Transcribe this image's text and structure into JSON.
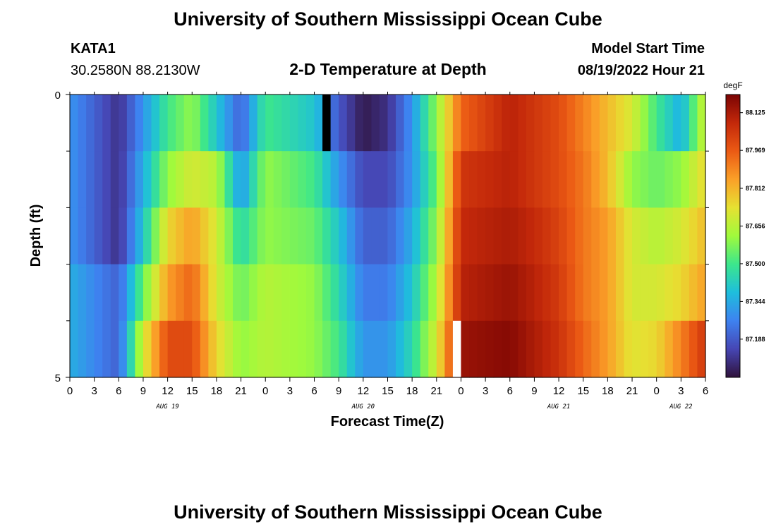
{
  "page": {
    "title": "University of Southern Mississippi Ocean Cube",
    "station": "KATA1",
    "coords": "30.2580N  88.2130W",
    "subtitle": "2-D Temperature at Depth",
    "model_start_label": "Model Start Time",
    "model_start_value": "08/19/2022 Hour 21",
    "footer_title": "University of Southern Mississippi Ocean Cube"
  },
  "chart_data": {
    "type": "heatmap",
    "title": "2-D Temperature at Depth",
    "xlabel": "Forecast Time(Z)",
    "ylabel": "Depth (ft)",
    "x_unit": "hours from 08/19 00Z",
    "x_range": [
      0,
      78
    ],
    "x_ticks": [
      {
        "h": 0,
        "label": "0"
      },
      {
        "h": 3,
        "label": "3"
      },
      {
        "h": 6,
        "label": "6"
      },
      {
        "h": 9,
        "label": "9"
      },
      {
        "h": 12,
        "label": "12"
      },
      {
        "h": 15,
        "label": "15"
      },
      {
        "h": 18,
        "label": "18"
      },
      {
        "h": 21,
        "label": "21"
      },
      {
        "h": 24,
        "label": "0"
      },
      {
        "h": 27,
        "label": "3"
      },
      {
        "h": 30,
        "label": "6"
      },
      {
        "h": 33,
        "label": "9"
      },
      {
        "h": 36,
        "label": "12"
      },
      {
        "h": 39,
        "label": "15"
      },
      {
        "h": 42,
        "label": "18"
      },
      {
        "h": 45,
        "label": "21"
      },
      {
        "h": 48,
        "label": "0"
      },
      {
        "h": 51,
        "label": "3"
      },
      {
        "h": 54,
        "label": "6"
      },
      {
        "h": 57,
        "label": "9"
      },
      {
        "h": 60,
        "label": "12"
      },
      {
        "h": 63,
        "label": "15"
      },
      {
        "h": 66,
        "label": "18"
      },
      {
        "h": 69,
        "label": "21"
      },
      {
        "h": 72,
        "label": "0"
      },
      {
        "h": 75,
        "label": "3"
      },
      {
        "h": 78,
        "label": "6"
      }
    ],
    "date_labels": [
      {
        "h": 12,
        "label": "AUG 19"
      },
      {
        "h": 36,
        "label": "AUG 20"
      },
      {
        "h": 60,
        "label": "AUG 21"
      },
      {
        "h": 75,
        "label": "AUG 22"
      }
    ],
    "y_range": [
      0,
      5
    ],
    "y_ticks": [
      {
        "v": 0,
        "label": "0"
      },
      {
        "v": 5,
        "label": "5"
      }
    ],
    "y_minor_ticks": [
      1,
      2,
      3,
      4
    ],
    "depth_levels": [
      0,
      1,
      2,
      3,
      4,
      5
    ],
    "colorbar": {
      "unit": "degF",
      "min": 87.03,
      "max": 88.2,
      "labels": [
        "88.125",
        "87.969",
        "87.812",
        "87.656",
        "87.500",
        "87.344",
        "87.188"
      ]
    },
    "nodata_cells": [
      {
        "h": 31.5,
        "depth": 0,
        "color": "#000000"
      },
      {
        "h": 47.5,
        "depth": 4,
        "color": "#ffffff"
      }
    ],
    "time_hours": [
      0,
      6,
      9,
      12,
      15,
      18,
      21,
      24,
      30,
      33,
      36,
      39,
      42,
      45,
      48,
      54,
      57,
      60,
      63,
      66,
      69,
      72,
      75,
      78
    ],
    "rows": [
      [
        87.3,
        87.1,
        87.3,
        87.5,
        87.6,
        87.4,
        87.2,
        87.5,
        87.4,
        87.18,
        87.05,
        87.1,
        87.3,
        87.6,
        87.95,
        88.1,
        88.05,
        88.0,
        87.9,
        87.8,
        87.7,
        87.5,
        87.35,
        87.7
      ],
      [
        87.3,
        87.1,
        87.35,
        87.6,
        87.7,
        87.65,
        87.3,
        87.6,
        87.5,
        87.3,
        87.15,
        87.15,
        87.3,
        87.55,
        88.05,
        88.1,
        88.05,
        88.0,
        87.92,
        87.8,
        87.6,
        87.55,
        87.6,
        87.75
      ],
      [
        87.3,
        87.1,
        87.4,
        87.75,
        87.85,
        87.7,
        87.45,
        87.6,
        87.55,
        87.4,
        87.2,
        87.2,
        87.35,
        87.6,
        88.08,
        88.12,
        88.08,
        88.02,
        87.92,
        87.85,
        87.7,
        87.65,
        87.7,
        87.8
      ],
      [
        87.35,
        87.2,
        87.55,
        87.85,
        87.95,
        87.7,
        87.55,
        87.65,
        87.6,
        87.45,
        87.25,
        87.25,
        87.4,
        87.65,
        88.1,
        88.15,
        88.1,
        88.04,
        87.92,
        87.85,
        87.7,
        87.7,
        87.75,
        87.85
      ],
      [
        87.35,
        87.2,
        87.7,
        88.0,
        88.0,
        87.75,
        87.6,
        87.65,
        87.6,
        87.5,
        87.3,
        87.3,
        87.45,
        87.7,
        88.15,
        88.18,
        88.12,
        88.06,
        87.95,
        87.85,
        87.72,
        87.75,
        87.9,
        88.05
      ],
      [
        87.35,
        87.25,
        87.8,
        88.05,
        88.0,
        87.75,
        87.6,
        87.65,
        87.6,
        87.5,
        87.3,
        87.3,
        87.45,
        87.7,
        88.15,
        88.2,
        88.15,
        88.08,
        87.98,
        87.88,
        87.75,
        87.78,
        87.95,
        88.12
      ]
    ]
  }
}
